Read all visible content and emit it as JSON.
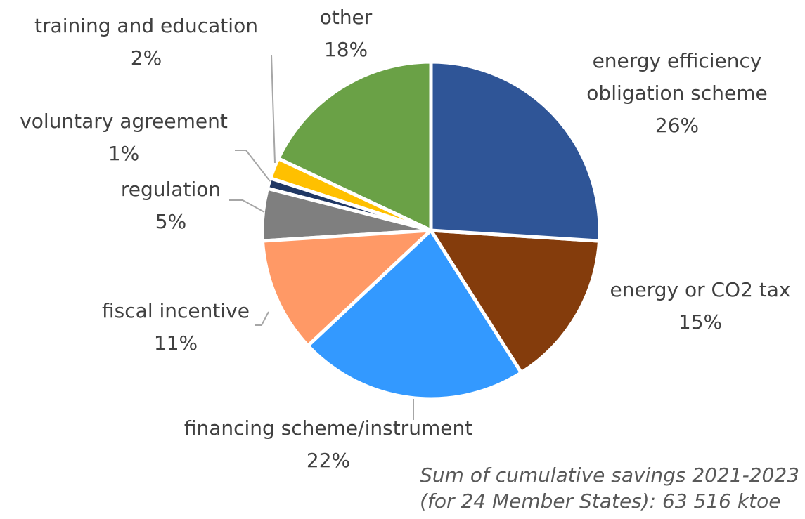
{
  "chart_data": {
    "type": "pie",
    "categories": [
      "energy efficiency obligation scheme",
      "energy or CO2 tax",
      "financing scheme/instrument",
      "fiscal incentive",
      "regulation",
      "voluntary agreement",
      "training and education",
      "other"
    ],
    "values": [
      26,
      15,
      22,
      11,
      5,
      1,
      2,
      18
    ],
    "value_labels": [
      "26%",
      "15%",
      "22%",
      "11%",
      "5%",
      "1%",
      "2%",
      "18%"
    ],
    "colors": [
      "#2f5597",
      "#843c0c",
      "#3399ff",
      "#ff9966",
      "#7f7f7f",
      "#203864",
      "#ffc000",
      "#6aa146"
    ],
    "annotation": [
      "Sum of cumulative savings 2021-2023",
      "(for 24 Member States): 63 516 ktoe"
    ]
  }
}
